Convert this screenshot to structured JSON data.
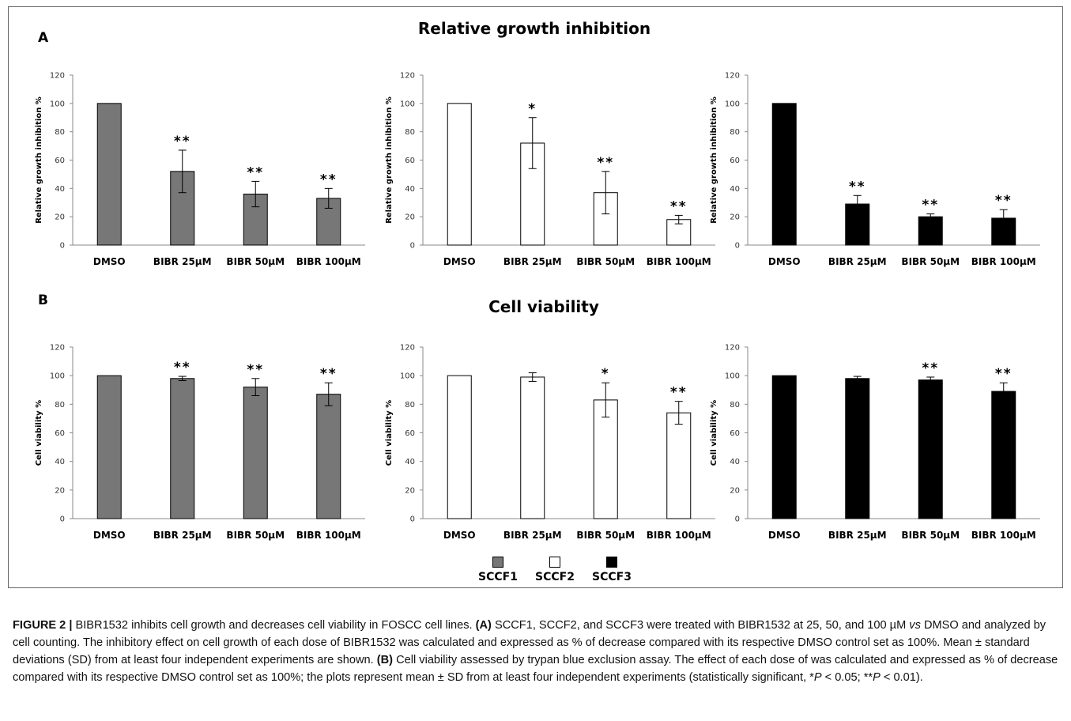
{
  "panels": {
    "a": {
      "letter": "A",
      "title": "Relative growth inhibition"
    },
    "b": {
      "letter": "B",
      "title": "Cell viability"
    }
  },
  "legend": [
    {
      "label": "SCCF1",
      "color": "#777777"
    },
    {
      "label": "SCCF2",
      "color": "#ffffff"
    },
    {
      "label": "SCCF3",
      "color": "#000000"
    }
  ],
  "caption": {
    "fig_label": "FIGURE 2 |",
    "p1": " BIBR1532 inhibits cell growth and decreases cell viability in FOSCC cell lines. ",
    "a_label": "(A)",
    "p2": " SCCF1, SCCF2, and SCCF3 were treated with BIBR1532 at 25, 50, and 100 µM ",
    "vs": "vs",
    "p3": " DMSO and analyzed by cell counting. The inhibitory effect on cell growth of each dose of BIBR1532 was calculated and expressed as % of decrease compared with its respective DMSO control set as 100%. Mean ± standard deviations (SD) from at least four independent experiments are shown. ",
    "b_label": "(B)",
    "p4": " Cell viability assessed by trypan blue exclusion assay. The effect of each dose of was calculated and expressed as % of decrease compared with its respective DMSO control set as 100%; the plots represent mean ± SD from at least four independent experiments (statistically significant, *",
    "p_sym1": "P",
    "p5": " < 0.05; **",
    "p_sym2": "P",
    "p6": " < 0.01)."
  },
  "chart_data": [
    {
      "type": "bar",
      "ylabel": "Relative growth inhibition %",
      "color": "#777777",
      "ylim": [
        0,
        120
      ],
      "yticks": [
        0,
        20,
        40,
        60,
        80,
        100,
        120
      ],
      "categories": [
        "DMSO",
        "BIBR 25µM",
        "BIBR 50µM",
        "BIBR 100µM"
      ],
      "values": [
        100,
        52,
        36,
        33
      ],
      "errors": [
        0,
        15,
        9,
        7
      ],
      "annotations": [
        "",
        "**",
        "**",
        "**"
      ]
    },
    {
      "type": "bar",
      "ylabel": "Relative growth inhibition %",
      "color": "#ffffff",
      "ylim": [
        0,
        120
      ],
      "yticks": [
        0,
        20,
        40,
        60,
        80,
        100,
        120
      ],
      "categories": [
        "DMSO",
        "BIBR 25µM",
        "BIBR 50µM",
        "BIBR 100µM"
      ],
      "values": [
        100,
        72,
        37,
        18
      ],
      "errors": [
        0,
        18,
        15,
        3
      ],
      "annotations": [
        "",
        "*",
        "**",
        "**"
      ]
    },
    {
      "type": "bar",
      "ylabel": "Relative growth inhibition %",
      "color": "#000000",
      "ylim": [
        0,
        120
      ],
      "yticks": [
        0,
        20,
        40,
        60,
        80,
        100,
        120
      ],
      "categories": [
        "DMSO",
        "BIBR 25µM",
        "BIBR 50µM",
        "BIBR 100µM"
      ],
      "values": [
        100,
        29,
        20,
        19
      ],
      "errors": [
        0,
        6,
        2,
        6
      ],
      "annotations": [
        "",
        "**",
        "**",
        "**"
      ]
    },
    {
      "type": "bar",
      "ylabel": "Cell viability %",
      "color": "#777777",
      "ylim": [
        0,
        120
      ],
      "yticks": [
        0,
        20,
        40,
        60,
        80,
        100,
        120
      ],
      "categories": [
        "DMSO",
        "BIBR 25µM",
        "BIBR 50µM",
        "BIBR 100µM"
      ],
      "values": [
        100,
        98,
        92,
        87
      ],
      "errors": [
        0,
        1.5,
        6,
        8
      ],
      "annotations": [
        "",
        "**",
        "**",
        "**"
      ]
    },
    {
      "type": "bar",
      "ylabel": "Cell viability %",
      "color": "#ffffff",
      "ylim": [
        0,
        120
      ],
      "yticks": [
        0,
        20,
        40,
        60,
        80,
        100,
        120
      ],
      "categories": [
        "DMSO",
        "BIBR 25µM",
        "BIBR 50µM",
        "BIBR 100µM"
      ],
      "values": [
        100,
        99,
        83,
        74
      ],
      "errors": [
        0,
        3,
        12,
        8
      ],
      "annotations": [
        "",
        "",
        "*",
        "**"
      ]
    },
    {
      "type": "bar",
      "ylabel": "Cell viability %",
      "color": "#000000",
      "ylim": [
        0,
        120
      ],
      "yticks": [
        0,
        20,
        40,
        60,
        80,
        100,
        120
      ],
      "categories": [
        "DMSO",
        "BIBR 25µM",
        "BIBR 50µM",
        "BIBR 100µM"
      ],
      "values": [
        100,
        98,
        97,
        89
      ],
      "errors": [
        0,
        1.5,
        2,
        6
      ],
      "annotations": [
        "",
        "",
        "**",
        "**"
      ]
    }
  ]
}
